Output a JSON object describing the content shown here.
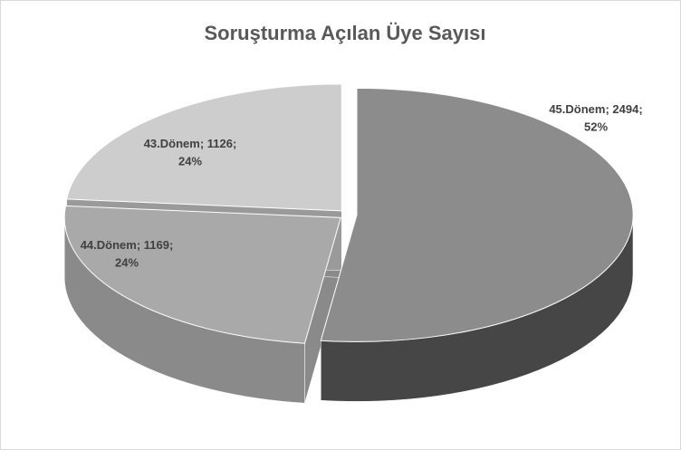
{
  "chart_data": {
    "type": "pie3d",
    "title": "Soruşturma Açılan Üye Sayısı",
    "categories": [
      "45.Dönem",
      "44.Dönem",
      "43.Dönem"
    ],
    "values": [
      2494,
      1169,
      1126
    ],
    "value_labels": [
      "; 2494;",
      "; 1169;",
      "; 1126;"
    ],
    "percent_labels": [
      "52%",
      "24%",
      "24%"
    ],
    "colors": [
      "#8c8c8c",
      "#a9a9a9",
      "#cdcdcd"
    ],
    "side_colors": [
      "#464646",
      "#8a8a8a",
      "#9a9a9a"
    ]
  }
}
